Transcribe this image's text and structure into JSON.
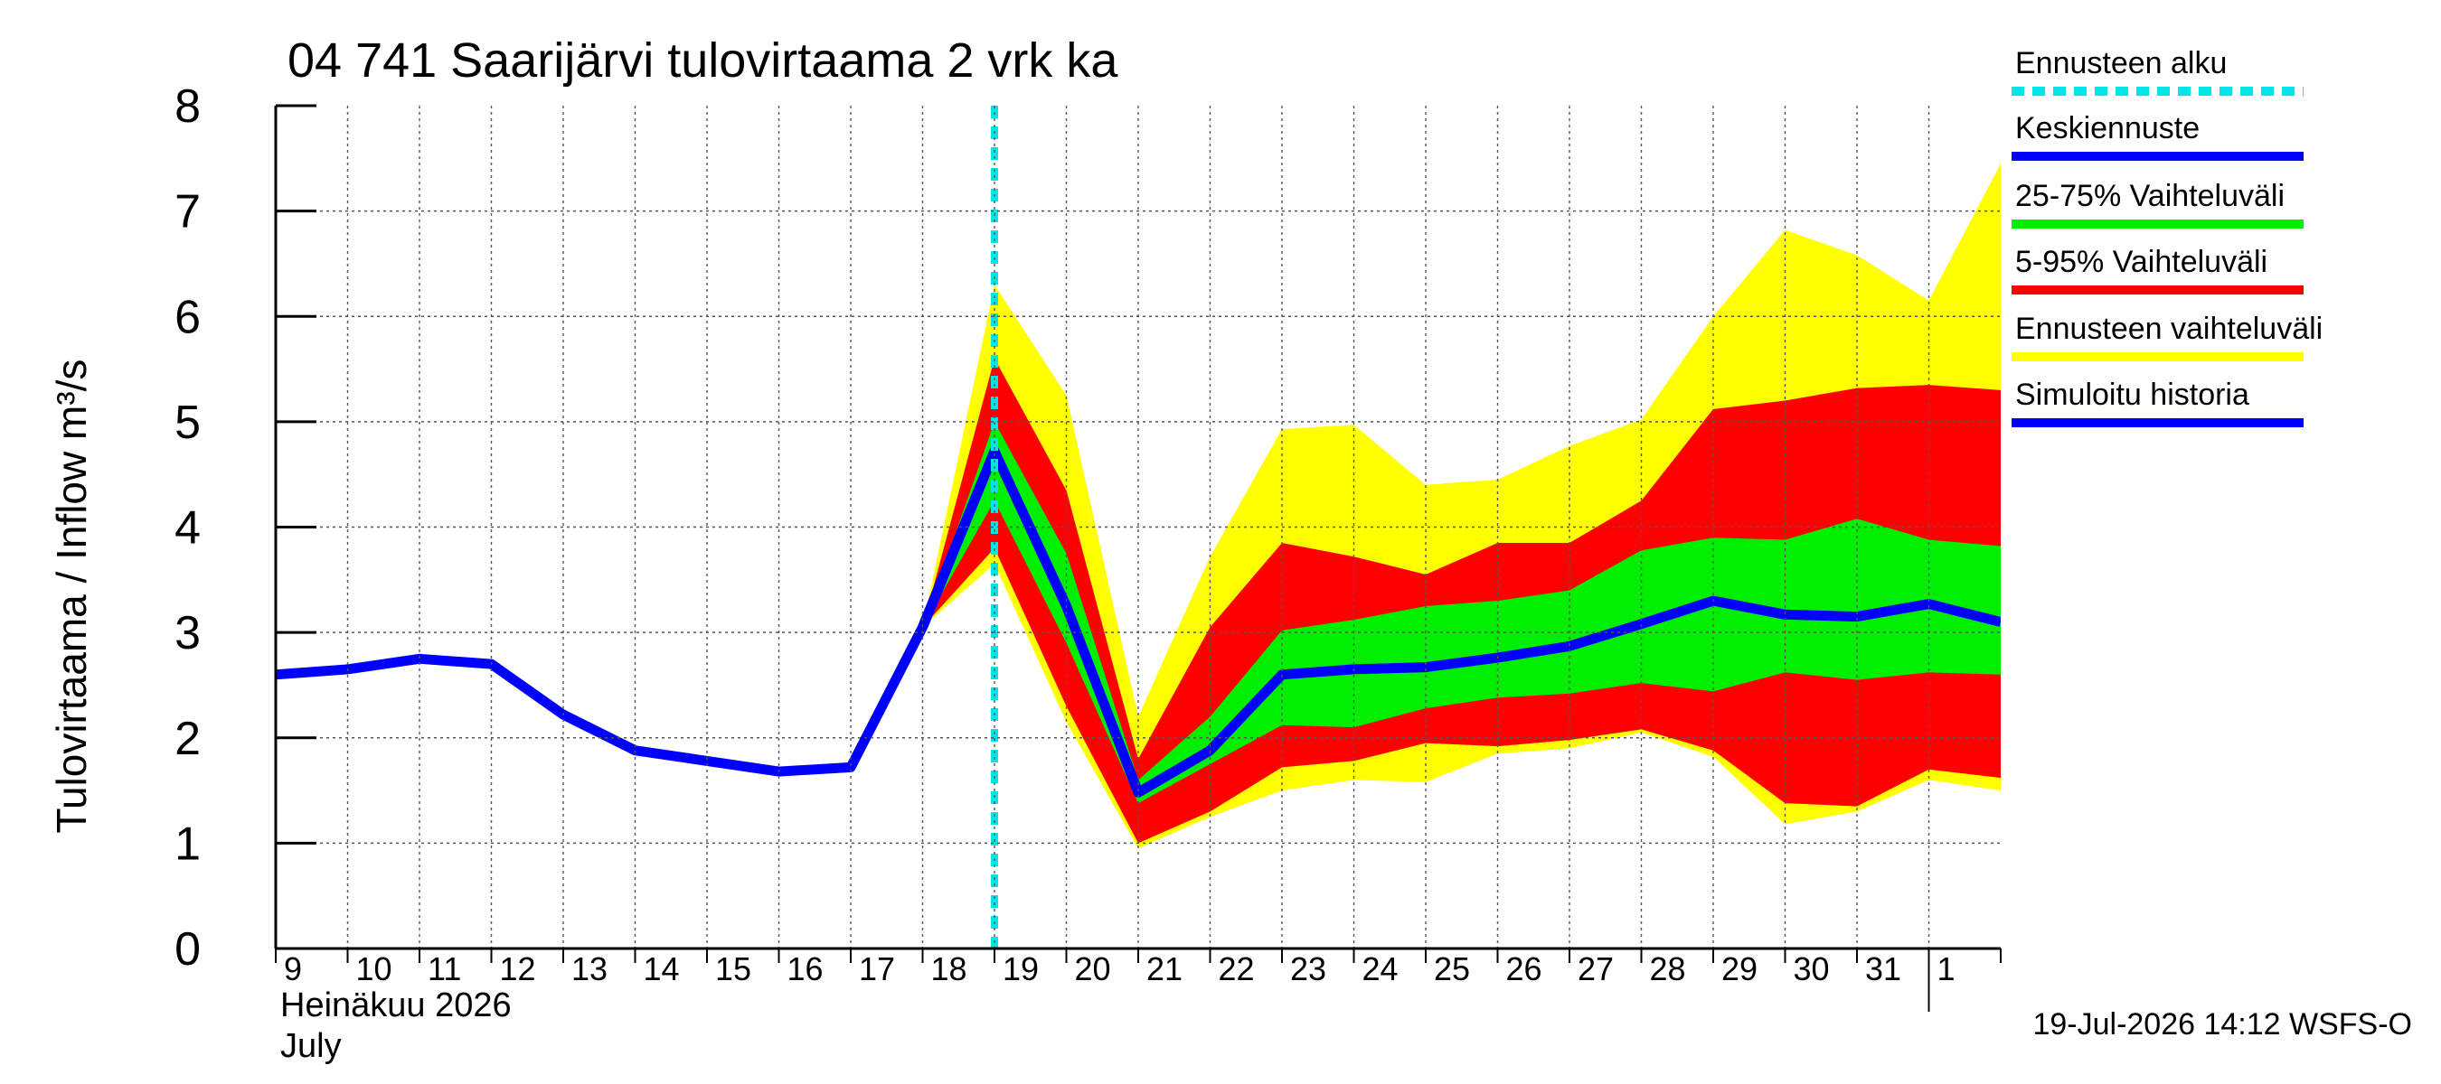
{
  "chart_data": {
    "type": "area",
    "title": "04 741 Saarijärvi tulovirtaama 2 vrk ka",
    "ylabel": "Tulovirtaama / Inflow    m³/s",
    "ylim": [
      0,
      8
    ],
    "y_ticks": [
      "0",
      "1",
      "2",
      "3",
      "4",
      "5",
      "6",
      "7",
      "8"
    ],
    "x_ticks": [
      "9",
      "10",
      "11",
      "12",
      "13",
      "14",
      "15",
      "16",
      "17",
      "18",
      "19",
      "20",
      "21",
      "22",
      "23",
      "24",
      "25",
      "26",
      "27",
      "28",
      "29",
      "30",
      "31",
      "1"
    ],
    "x_month_fi": "Heinäkuu  2026",
    "x_month_en": "July",
    "grid": true,
    "legend_position": "right",
    "forecast_start": "2026-07-19",
    "history": {
      "name": "Simuloitu historia",
      "x": [
        "2026-07-09",
        "2026-07-10",
        "2026-07-11",
        "2026-07-12",
        "2026-07-13",
        "2026-07-14",
        "2026-07-15",
        "2026-07-16",
        "2026-07-17",
        "2026-07-18",
        "2026-07-19"
      ],
      "values": [
        2.6,
        2.65,
        2.75,
        2.7,
        2.22,
        1.88,
        1.78,
        1.68,
        1.72,
        3.05,
        4.72
      ]
    },
    "forecast": {
      "x": [
        "2026-07-18",
        "2026-07-19",
        "2026-07-20",
        "2026-07-21",
        "2026-07-22",
        "2026-07-23",
        "2026-07-24",
        "2026-07-25",
        "2026-07-26",
        "2026-07-27",
        "2026-07-28",
        "2026-07-29",
        "2026-07-30",
        "2026-07-31",
        "2026-08-01",
        "2026-08-02"
      ],
      "mean": [
        3.05,
        4.72,
        3.25,
        1.48,
        1.88,
        2.6,
        2.65,
        2.67,
        2.76,
        2.87,
        3.08,
        3.3,
        3.17,
        3.15,
        3.27,
        3.1
      ],
      "p25": [
        3.05,
        4.25,
        2.9,
        1.38,
        1.75,
        2.12,
        2.1,
        2.28,
        2.38,
        2.42,
        2.52,
        2.44,
        2.62,
        2.55,
        2.62,
        2.6
      ],
      "p75": [
        3.05,
        5.0,
        3.75,
        1.6,
        2.2,
        3.02,
        3.12,
        3.25,
        3.3,
        3.4,
        3.78,
        3.9,
        3.88,
        4.08,
        3.88,
        3.82
      ],
      "p5": [
        3.05,
        3.8,
        2.3,
        1.0,
        1.3,
        1.72,
        1.78,
        1.95,
        1.92,
        1.98,
        2.08,
        1.88,
        1.38,
        1.35,
        1.7,
        1.62
      ],
      "p95": [
        3.05,
        5.6,
        4.35,
        1.8,
        3.05,
        3.85,
        3.72,
        3.55,
        3.85,
        3.85,
        4.25,
        5.12,
        5.2,
        5.32,
        5.35,
        5.3
      ],
      "min": [
        3.05,
        3.65,
        2.15,
        0.95,
        1.25,
        1.5,
        1.6,
        1.58,
        1.85,
        1.9,
        2.05,
        1.82,
        1.18,
        1.3,
        1.6,
        1.5
      ],
      "max": [
        3.05,
        6.3,
        5.25,
        2.2,
        3.72,
        4.93,
        4.97,
        4.4,
        4.45,
        4.77,
        5.02,
        6.0,
        6.82,
        6.58,
        6.15,
        7.45
      ]
    },
    "legend": [
      {
        "label": "Ennusteen alku",
        "color": "#00e5e5",
        "style": "dashed"
      },
      {
        "label": "Keskiennuste",
        "color": "#0000ff",
        "style": "solid"
      },
      {
        "label": "25-75% Vaihteluväli",
        "color": "#00ee00",
        "style": "solid"
      },
      {
        "label": "5-95% Vaihteluväli",
        "color": "#ff0000",
        "style": "solid"
      },
      {
        "label": "Ennusteen vaihteluväli",
        "color": "#ffff00",
        "style": "solid"
      },
      {
        "label": "Simuloitu historia",
        "color": "#0000ff",
        "style": "solid"
      }
    ],
    "colors": {
      "band_full": "#ffff00",
      "band_5_95": "#ff0000",
      "band_25_75": "#00ee00",
      "line": "#0000ff",
      "forecast_start": "#00e5e5"
    },
    "footer": "19-Jul-2026 14:12 WSFS-O"
  }
}
